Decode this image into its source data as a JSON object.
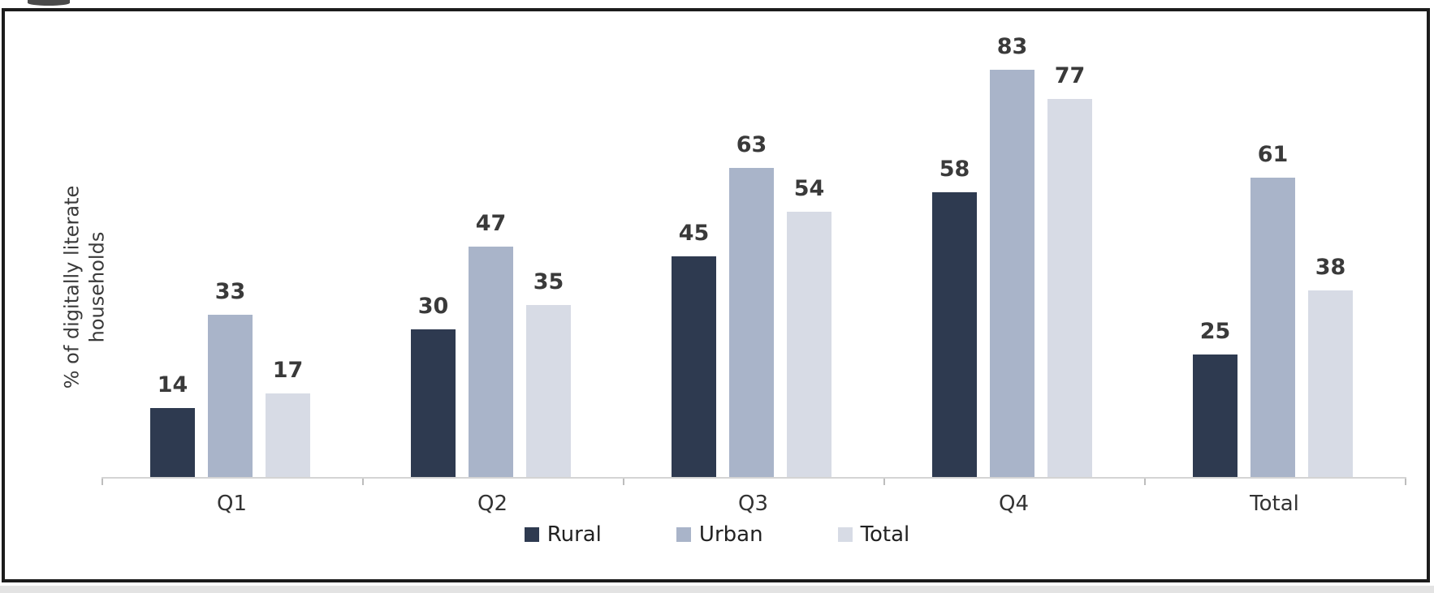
{
  "chart_data": {
    "type": "bar",
    "categories": [
      "Q1",
      "Q2",
      "Q3",
      "Q4",
      "Total"
    ],
    "series": [
      {
        "name": "Rural",
        "color": "#2e3a50",
        "values": [
          14,
          30,
          45,
          58,
          25
        ]
      },
      {
        "name": "Urban",
        "color": "#a9b4c9",
        "values": [
          33,
          47,
          63,
          83,
          61
        ]
      },
      {
        "name": "Total",
        "color": "#d7dbe5",
        "values": [
          17,
          35,
          54,
          77,
          38
        ]
      }
    ],
    "title": "",
    "xlabel": "",
    "ylabel": "% of digitally literate households",
    "ylabel_lines": [
      "% of digitally literate",
      "households"
    ],
    "ylim": [
      0,
      90
    ],
    "grid": false,
    "data_labels": true,
    "legend_position": "bottom",
    "axis_color": "#d4d4d4",
    "label_color": "#3a3a3a",
    "frame_border_color": "#1c1c1c"
  }
}
